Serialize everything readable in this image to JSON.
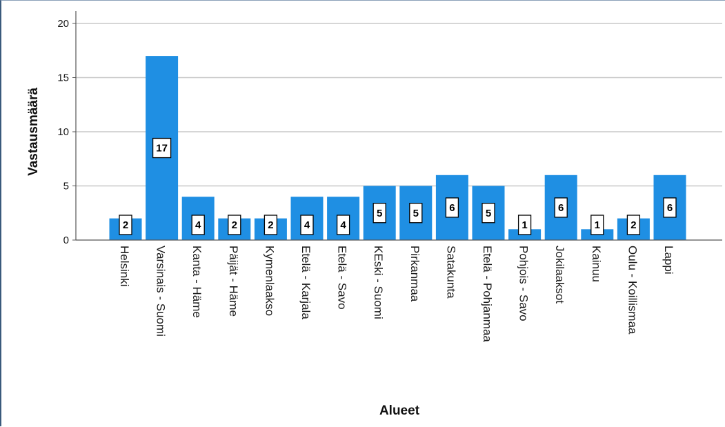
{
  "chart_data": {
    "type": "bar",
    "xlabel": "Alueet",
    "ylabel": "Vastausmäärä",
    "categories": [
      "Helsinki",
      "Varsinais - Suomi",
      "Kanta - Häme",
      "Päijät - Häme",
      "Kymenlaakso",
      "Etelä - Karjala",
      "Etelä - Savo",
      "KEski - Suomi",
      "Pirkanmaa",
      "Satakunta",
      "Etelä - Pohjanmaa",
      "Pohjois - Savo",
      "Jokilaaksot",
      "Kainuu",
      "Oulu - Koillismaa",
      "Lappi"
    ],
    "values": [
      2,
      17,
      4,
      2,
      2,
      4,
      4,
      5,
      5,
      6,
      5,
      1,
      6,
      1,
      2,
      6
    ],
    "ylim": [
      0,
      20
    ],
    "yticks": [
      0,
      5,
      10,
      15,
      20
    ],
    "grid": true,
    "bar_color": "#1f8fe3",
    "data_labels": true
  }
}
